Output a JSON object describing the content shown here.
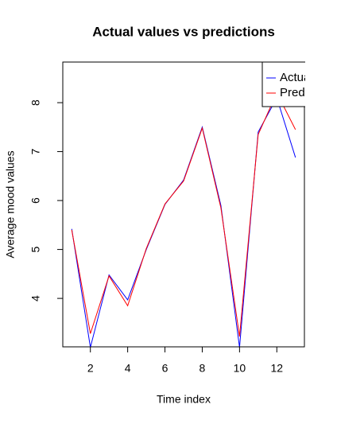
{
  "chart_data": {
    "type": "line",
    "title": "Actual values vs predictions",
    "x_label": "Time index",
    "y_label": "Average mood values",
    "x": [
      1,
      2,
      3,
      4,
      5,
      6,
      7,
      8,
      9,
      10,
      11,
      12,
      13
    ],
    "series": [
      {
        "name": "Actual",
        "color": "#0000ff",
        "values": [
          5.42,
          3.0,
          4.48,
          3.97,
          5.0,
          5.92,
          6.42,
          7.5,
          5.9,
          3.0,
          7.4,
          8.1,
          6.88
        ]
      },
      {
        "name": "Predicted",
        "color": "#ff0000",
        "values": [
          5.4,
          3.28,
          4.46,
          3.85,
          5.02,
          5.93,
          6.4,
          7.48,
          5.85,
          3.22,
          7.35,
          8.2,
          7.45
        ]
      }
    ],
    "xlim": [
      0.52,
      13.48
    ],
    "xticks": [
      2,
      4,
      6,
      8,
      10,
      12
    ],
    "ylim": [
      3.01,
      8.83
    ],
    "yticks": [
      4,
      5,
      6,
      7,
      8
    ],
    "legend": "top-right"
  }
}
